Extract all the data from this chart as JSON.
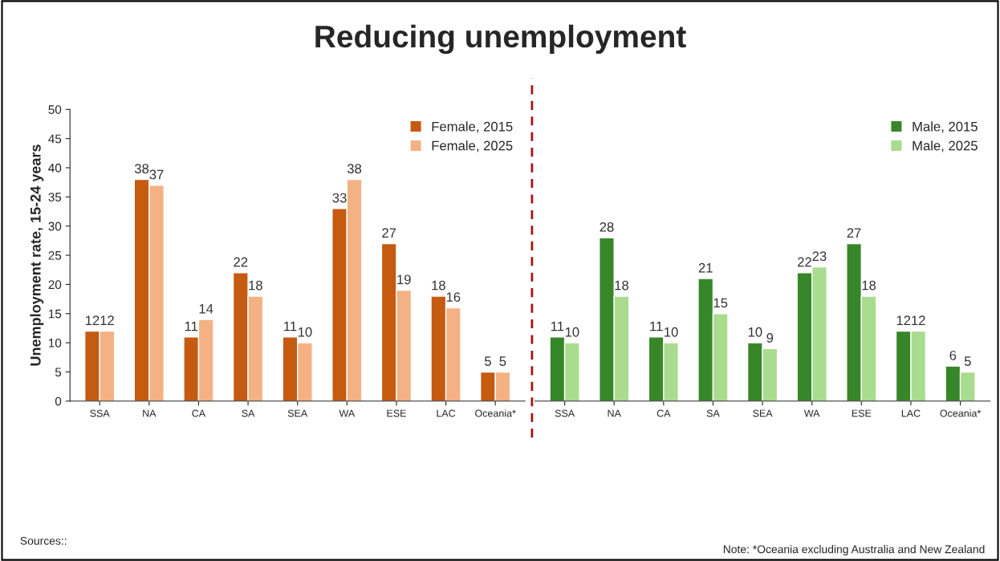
{
  "chart_data": [
    {
      "type": "bar",
      "title": "Reducing unemployment",
      "ylabel": "Unemployment rate, 15-24 years",
      "categories": [
        "SSA",
        "NA",
        "CA",
        "SA",
        "SEA",
        "WA",
        "ESE",
        "LAC",
        "Oceania*"
      ],
      "series": [
        {
          "name": "Female, 2015",
          "color": "#c55a11",
          "values": [
            12,
            38,
            11,
            22,
            11,
            33,
            27,
            18,
            5
          ]
        },
        {
          "name": "Female, 2025",
          "color": "#f4b183",
          "values": [
            12,
            37,
            14,
            18,
            10,
            38,
            19,
            16,
            5
          ]
        }
      ],
      "ylim": [
        0,
        50
      ],
      "yticks": [
        0,
        5,
        10,
        15,
        20,
        25,
        30,
        35,
        40,
        45,
        50
      ],
      "legend": "top right",
      "data_labels": true,
      "grid": false,
      "annotations": [
        "Sources::"
      ]
    },
    {
      "type": "bar",
      "categories": [
        "SSA",
        "NA",
        "CA",
        "SA",
        "SEA",
        "WA",
        "ESE",
        "LAC",
        "Oceania*"
      ],
      "series": [
        {
          "name": "Male, 2015",
          "color": "#38862a",
          "values": [
            11,
            28,
            11,
            21,
            10,
            22,
            27,
            12,
            6
          ]
        },
        {
          "name": "Male, 2025",
          "color": "#a9dc8e",
          "values": [
            10,
            18,
            10,
            15,
            9,
            23,
            18,
            12,
            5
          ]
        }
      ],
      "ylim": [
        0,
        50
      ],
      "yticks": [
        0,
        5,
        10,
        15,
        20,
        25,
        30,
        35,
        40,
        45,
        50
      ],
      "tick_labels": "x",
      "legend": "top right",
      "data_labels": true,
      "grid": false,
      "annotations": [
        "Note: *Oceania excluding Australia and New Zealand"
      ]
    }
  ]
}
